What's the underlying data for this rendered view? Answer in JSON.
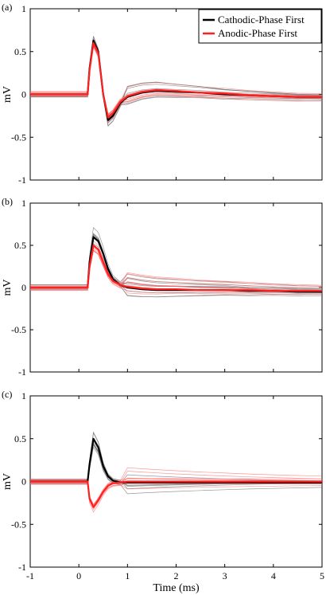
{
  "chart_data": [
    {
      "type": "line",
      "panel_label": "(a)",
      "ylabel": "mV",
      "xlabel": "",
      "xlim": [
        -1,
        5
      ],
      "ylim": [
        -1,
        1
      ],
      "y_ticks": [
        "1",
        "0.5",
        "0",
        "-0.5",
        "-1"
      ],
      "legend": {
        "position": "top-right",
        "entries": [
          {
            "name": "Cathodic-Phase First",
            "color": "#000000"
          },
          {
            "name": "Anodic-Phase First",
            "color": "#ff2020"
          }
        ]
      },
      "series": [
        {
          "name": "Cathodic-Phase First",
          "color": "#000000",
          "x": [
            -1,
            0.18,
            0.22,
            0.3,
            0.4,
            0.5,
            0.6,
            0.7,
            0.85,
            1.0,
            1.3,
            1.6,
            2.0,
            2.5,
            3.0,
            3.5,
            4.0,
            4.5,
            5.0
          ],
          "y": [
            0,
            0,
            0.3,
            0.63,
            0.5,
            0.0,
            -0.3,
            -0.25,
            -0.1,
            -0.03,
            0.02,
            0.04,
            0.03,
            0.02,
            0.0,
            -0.01,
            -0.02,
            -0.03,
            -0.03
          ]
        },
        {
          "name": "Anodic-Phase First",
          "color": "#ff2020",
          "x": [
            -1,
            0.18,
            0.22,
            0.3,
            0.4,
            0.5,
            0.6,
            0.7,
            0.85,
            1.0,
            1.3,
            1.6,
            2.0,
            2.5,
            3.0,
            3.5,
            4.0,
            4.5,
            5.0
          ],
          "y": [
            0,
            0,
            0.28,
            0.6,
            0.48,
            0.0,
            -0.27,
            -0.22,
            -0.09,
            -0.02,
            0.03,
            0.05,
            0.04,
            0.02,
            0.01,
            -0.01,
            -0.02,
            -0.03,
            -0.03
          ]
        }
      ]
    },
    {
      "type": "line",
      "panel_label": "(b)",
      "ylabel": "mV",
      "xlabel": "",
      "xlim": [
        -1,
        5
      ],
      "ylim": [
        -1,
        1
      ],
      "y_ticks": [
        "1",
        "0.5",
        "0",
        "-0.5",
        "-1"
      ],
      "series": [
        {
          "name": "Cathodic-Phase First",
          "color": "#000000",
          "x": [
            -1,
            0.18,
            0.22,
            0.3,
            0.4,
            0.5,
            0.6,
            0.7,
            0.85,
            1.0,
            1.3,
            1.6,
            2.0,
            2.5,
            3.0,
            3.5,
            4.0,
            4.5,
            5.0
          ],
          "y": [
            0,
            0,
            0.3,
            0.6,
            0.55,
            0.4,
            0.22,
            0.1,
            0.03,
            0.0,
            -0.02,
            -0.03,
            -0.03,
            -0.03,
            -0.03,
            -0.04,
            -0.04,
            -0.05,
            -0.05
          ]
        },
        {
          "name": "Anodic-Phase First",
          "color": "#ff2020",
          "x": [
            -1,
            0.18,
            0.22,
            0.3,
            0.4,
            0.5,
            0.6,
            0.7,
            0.85,
            1.0,
            1.3,
            1.6,
            2.0,
            2.5,
            3.0,
            3.5,
            4.0,
            4.5,
            5.0
          ],
          "y": [
            0,
            0,
            0.25,
            0.5,
            0.45,
            0.3,
            0.16,
            0.08,
            0.03,
            0.01,
            -0.01,
            -0.02,
            -0.02,
            -0.03,
            -0.03,
            -0.03,
            -0.04,
            -0.04,
            -0.04
          ]
        }
      ]
    },
    {
      "type": "line",
      "panel_label": "(c)",
      "ylabel": "mV",
      "xlabel": "Time (ms)",
      "xlim": [
        -1,
        5
      ],
      "ylim": [
        -1,
        1
      ],
      "x_ticks": [
        "-1",
        "0",
        "1",
        "2",
        "3",
        "4",
        "5"
      ],
      "y_ticks": [
        "1",
        "0.5",
        "0",
        "-0.5",
        "-1"
      ],
      "series": [
        {
          "name": "Cathodic-Phase First",
          "color": "#000000",
          "x": [
            -1,
            0.18,
            0.22,
            0.3,
            0.4,
            0.5,
            0.6,
            0.7,
            0.85,
            1.0,
            1.3,
            1.6,
            2.0,
            2.5,
            3.0,
            3.5,
            4.0,
            4.5,
            5.0
          ],
          "y": [
            0,
            0,
            0.2,
            0.5,
            0.4,
            0.18,
            0.06,
            0.01,
            -0.01,
            -0.01,
            -0.01,
            -0.01,
            -0.01,
            -0.01,
            -0.01,
            -0.01,
            -0.01,
            -0.01,
            -0.01
          ]
        },
        {
          "name": "Anodic-Phase First",
          "color": "#ff2020",
          "x": [
            -1,
            0.18,
            0.22,
            0.3,
            0.4,
            0.5,
            0.6,
            0.7,
            0.85,
            1.0,
            1.3,
            1.6,
            2.0,
            2.5,
            3.0,
            3.5,
            4.0,
            4.5,
            5.0
          ],
          "y": [
            0,
            0,
            -0.2,
            -0.3,
            -0.22,
            -0.12,
            -0.05,
            -0.02,
            -0.01,
            0.0,
            0.0,
            0.0,
            0.0,
            0.0,
            0.0,
            0.0,
            0.0,
            0.0,
            0.0
          ]
        }
      ]
    }
  ]
}
